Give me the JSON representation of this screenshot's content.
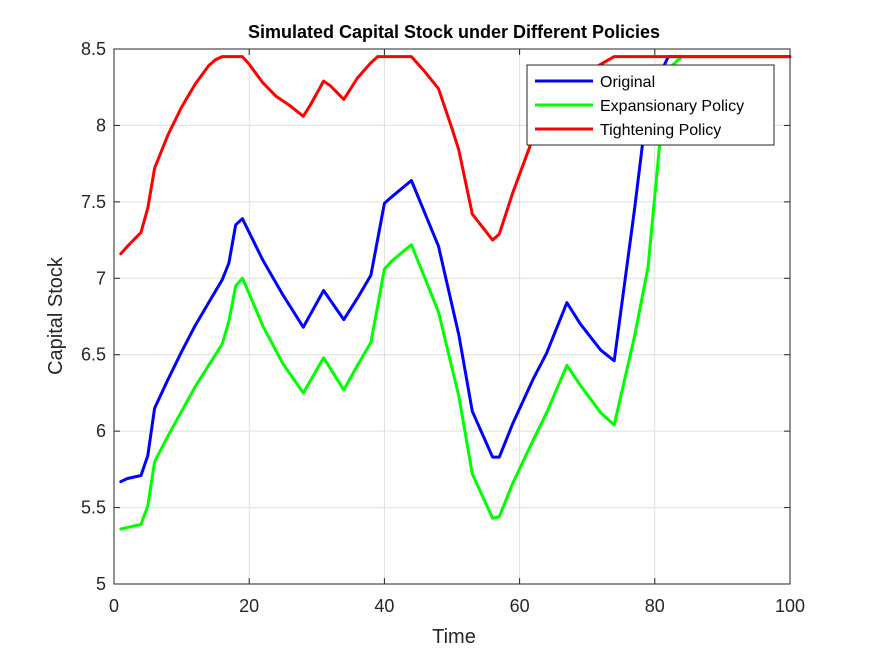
{
  "chart_data": {
    "type": "line",
    "title": "Simulated Capital Stock under Different Policies",
    "xlabel": "Time",
    "ylabel": "Capital Stock",
    "xlim": [
      0,
      100
    ],
    "ylim": [
      5,
      8.5
    ],
    "xticks": [
      0,
      20,
      40,
      60,
      80,
      100
    ],
    "xtick_labels": [
      "0",
      "20",
      "40",
      "60",
      "80",
      "100"
    ],
    "yticks": [
      5,
      5.5,
      6,
      6.5,
      7,
      7.5,
      8,
      8.5
    ],
    "ytick_labels": [
      "5",
      "5.5",
      "6",
      "6.5",
      "7",
      "7.5",
      "8",
      "8.5"
    ],
    "grid": true,
    "legend_position": "top-right",
    "series": [
      {
        "name": "Original",
        "color": "#0000ff",
        "points": [
          [
            1,
            5.67
          ],
          [
            2,
            5.69
          ],
          [
            4,
            5.71
          ],
          [
            5,
            5.84
          ],
          [
            6,
            6.15
          ],
          [
            8,
            6.34
          ],
          [
            10,
            6.52
          ],
          [
            12,
            6.69
          ],
          [
            14,
            6.84
          ],
          [
            16,
            6.99
          ],
          [
            17,
            7.1
          ],
          [
            18,
            7.35
          ],
          [
            19,
            7.39
          ],
          [
            20,
            7.3
          ],
          [
            22,
            7.12
          ],
          [
            25,
            6.89
          ],
          [
            28,
            6.68
          ],
          [
            31,
            6.92
          ],
          [
            34,
            6.73
          ],
          [
            36,
            6.87
          ],
          [
            38,
            7.02
          ],
          [
            40,
            7.49
          ],
          [
            41,
            7.53
          ],
          [
            44,
            7.64
          ],
          [
            48,
            7.21
          ],
          [
            51,
            6.63
          ],
          [
            53,
            6.13
          ],
          [
            56,
            5.83
          ],
          [
            57,
            5.83
          ],
          [
            59,
            6.05
          ],
          [
            62,
            6.34
          ],
          [
            64,
            6.51
          ],
          [
            67,
            6.84
          ],
          [
            69,
            6.7
          ],
          [
            72,
            6.53
          ],
          [
            74,
            6.46
          ],
          [
            77,
            7.45
          ],
          [
            79,
            8.17
          ],
          [
            82,
            8.45
          ],
          [
            100,
            8.45
          ]
        ]
      },
      {
        "name": "Expansionary Policy",
        "color": "#00ff00",
        "points": [
          [
            1,
            5.36
          ],
          [
            2,
            5.37
          ],
          [
            4,
            5.39
          ],
          [
            5,
            5.51
          ],
          [
            6,
            5.8
          ],
          [
            8,
            5.97
          ],
          [
            10,
            6.13
          ],
          [
            12,
            6.29
          ],
          [
            14,
            6.43
          ],
          [
            16,
            6.57
          ],
          [
            17,
            6.72
          ],
          [
            18,
            6.95
          ],
          [
            19,
            7.0
          ],
          [
            20,
            6.9
          ],
          [
            22,
            6.69
          ],
          [
            25,
            6.44
          ],
          [
            28,
            6.25
          ],
          [
            31,
            6.48
          ],
          [
            34,
            6.27
          ],
          [
            36,
            6.43
          ],
          [
            38,
            6.58
          ],
          [
            40,
            7.06
          ],
          [
            41,
            7.11
          ],
          [
            44,
            7.22
          ],
          [
            48,
            6.78
          ],
          [
            51,
            6.23
          ],
          [
            53,
            5.72
          ],
          [
            56,
            5.43
          ],
          [
            57,
            5.44
          ],
          [
            59,
            5.66
          ],
          [
            62,
            5.94
          ],
          [
            64,
            6.12
          ],
          [
            67,
            6.43
          ],
          [
            69,
            6.3
          ],
          [
            72,
            6.12
          ],
          [
            74,
            6.04
          ],
          [
            77,
            6.62
          ],
          [
            79,
            7.07
          ],
          [
            81,
            8.01
          ],
          [
            82,
            8.37
          ],
          [
            84,
            8.45
          ],
          [
            100,
            8.45
          ]
        ]
      },
      {
        "name": "Tightening Policy",
        "color": "#ff0000",
        "points": [
          [
            1,
            7.16
          ],
          [
            2,
            7.21
          ],
          [
            4,
            7.3
          ],
          [
            5,
            7.46
          ],
          [
            6,
            7.72
          ],
          [
            8,
            7.94
          ],
          [
            10,
            8.12
          ],
          [
            12,
            8.27
          ],
          [
            14,
            8.39
          ],
          [
            15,
            8.43
          ],
          [
            16,
            8.45
          ],
          [
            19,
            8.45
          ],
          [
            20,
            8.4
          ],
          [
            22,
            8.28
          ],
          [
            24,
            8.19
          ],
          [
            26,
            8.13
          ],
          [
            28,
            8.06
          ],
          [
            29,
            8.13
          ],
          [
            31,
            8.29
          ],
          [
            32,
            8.26
          ],
          [
            34,
            8.17
          ],
          [
            36,
            8.31
          ],
          [
            38,
            8.41
          ],
          [
            39,
            8.45
          ],
          [
            44,
            8.45
          ],
          [
            46,
            8.35
          ],
          [
            48,
            8.24
          ],
          [
            50,
            7.98
          ],
          [
            51,
            7.84
          ],
          [
            53,
            7.42
          ],
          [
            56,
            7.25
          ],
          [
            57,
            7.29
          ],
          [
            59,
            7.56
          ],
          [
            62,
            7.92
          ],
          [
            64,
            8.13
          ],
          [
            67,
            8.28
          ],
          [
            69,
            8.32
          ],
          [
            72,
            8.4
          ],
          [
            74,
            8.45
          ],
          [
            100,
            8.45
          ]
        ]
      }
    ]
  }
}
